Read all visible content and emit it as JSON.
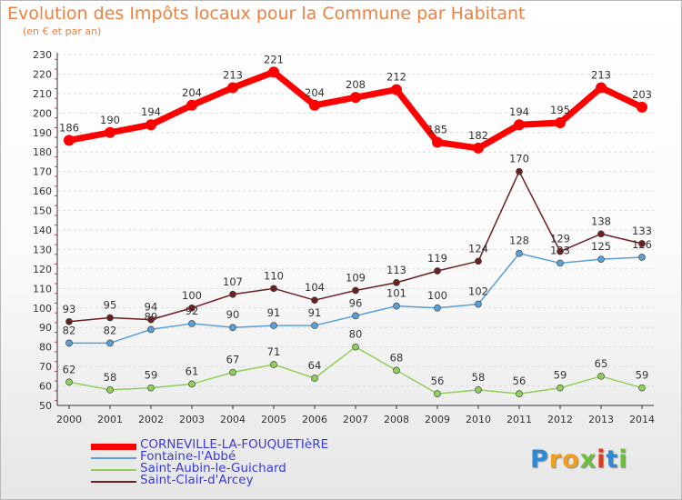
{
  "header": {
    "title": "Evolution des Impôts locaux pour la Commune par Habitant",
    "subtitle": "(en € et par an)"
  },
  "chart_data": {
    "type": "line",
    "title": "Evolution des Impôts locaux pour la Commune par Habitant",
    "subtitle": "(en € et par an)",
    "xlabel": "",
    "ylabel": "",
    "ylim": [
      50,
      230
    ],
    "y_ticks": [
      50,
      60,
      70,
      80,
      90,
      100,
      110,
      120,
      130,
      140,
      150,
      160,
      170,
      180,
      190,
      200,
      210,
      220,
      230
    ],
    "grid": "horizontal dashed",
    "legend_position": "bottom-left",
    "categories": [
      "2000",
      "2001",
      "2002",
      "2003",
      "2004",
      "2005",
      "2006",
      "2007",
      "2008",
      "2009",
      "2010",
      "2011",
      "2012",
      "2013",
      "2014"
    ],
    "series": [
      {
        "name": "CORNEVILLE-LA-FOUQUETIèRE",
        "color": "#ff0000",
        "values": [
          186,
          190,
          194,
          204,
          213,
          221,
          204,
          208,
          212,
          185,
          182,
          194,
          195,
          213,
          203
        ]
      },
      {
        "name": "Fontaine-l'Abbé",
        "color": "#5a9fd8",
        "values": [
          82,
          82,
          89,
          92,
          90,
          91,
          91,
          96,
          101,
          100,
          102,
          128,
          123,
          125,
          126
        ]
      },
      {
        "name": "Saint-Aubin-le-Guichard",
        "color": "#8fd05a",
        "values": [
          62,
          58,
          59,
          61,
          67,
          71,
          64,
          80,
          68,
          56,
          58,
          56,
          59,
          65,
          59
        ]
      },
      {
        "name": "Saint-Clair-d'Arcey",
        "color": "#6b1f1f",
        "values": [
          93,
          95,
          94,
          100,
          107,
          110,
          104,
          109,
          113,
          119,
          124,
          170,
          129,
          138,
          133
        ]
      }
    ]
  },
  "legend": {
    "items": [
      {
        "label": "CORNEVILLE-LA-FOUQUETIèRE",
        "color": "#ff0000"
      },
      {
        "label": "Fontaine-l'Abbé",
        "color": "#5a9fd8"
      },
      {
        "label": "Saint-Aubin-le-Guichard",
        "color": "#8fd05a"
      },
      {
        "label": "Saint-Clair-d'Arcey",
        "color": "#6b1f1f"
      }
    ]
  },
  "logo": {
    "letters": [
      {
        "char": "P",
        "color": "#2b8ad6"
      },
      {
        "char": "r",
        "color": "#f0a020"
      },
      {
        "char": "o",
        "color": "#f0a020"
      },
      {
        "char": "x",
        "color": "#6cbf3a"
      },
      {
        "char": "i",
        "color": "#d84020"
      },
      {
        "char": "t",
        "color": "#2b8ad6"
      },
      {
        "char": "i",
        "color": "#6cbf3a"
      }
    ]
  }
}
